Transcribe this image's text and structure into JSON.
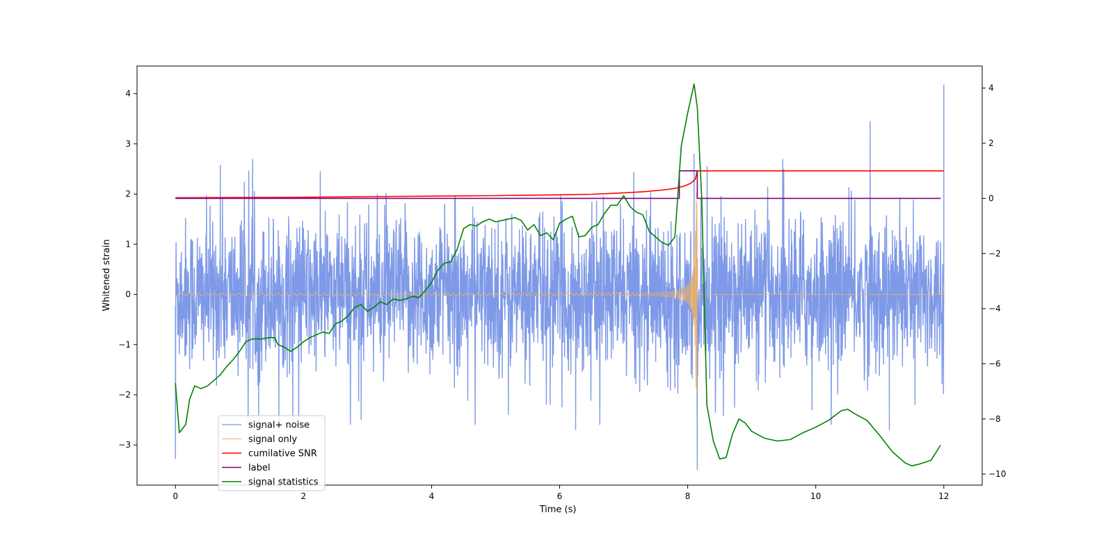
{
  "chart_data": {
    "type": "line",
    "title": "",
    "xlabel": "Time (s)",
    "ylabel": "Whitened strain",
    "xlim": [
      -0.6,
      12.6
    ],
    "ylim_left": [
      -3.8,
      4.55
    ],
    "ylim_right": [
      -10.4,
      4.8
    ],
    "x_ticks": [
      0,
      2,
      4,
      6,
      8,
      10,
      12
    ],
    "y_ticks_left": [
      -3,
      -2,
      -1,
      0,
      1,
      2,
      3,
      4
    ],
    "y_ticks_right": [
      -10,
      -8,
      -6,
      -4,
      -2,
      0,
      2,
      4
    ],
    "x_tick_labels": [
      "0",
      "2",
      "4",
      "6",
      "8",
      "10",
      "12"
    ],
    "y_tick_labels_left": [
      "−3",
      "−2",
      "−1",
      "0",
      "1",
      "2",
      "3",
      "4"
    ],
    "y_tick_labels_right": [
      "−10",
      "−8",
      "−6",
      "−4",
      "−2",
      "0",
      "2",
      "4"
    ],
    "legend_location": "lower-left",
    "series": [
      {
        "name": "signal+ noise",
        "axis": "left",
        "color": "#7794e6",
        "description": "noisy whitened strain, amplitude ~1.8 with spikes up to 4.2 at t=12 and down to -3.5 at t=8.1",
        "spikes": [
          [
            0.0,
            -3.28
          ],
          [
            0.7,
            2.58
          ],
          [
            1.3,
            -2.6
          ],
          [
            2.9,
            -2.5
          ],
          [
            5.2,
            -2.4
          ],
          [
            6.25,
            -2.7
          ],
          [
            8.15,
            -3.5
          ],
          [
            8.1,
            2.8
          ],
          [
            9.5,
            2.5
          ],
          [
            10.85,
            3.45
          ],
          [
            11.15,
            -2.7
          ],
          [
            11.55,
            -2.2
          ],
          [
            12.0,
            4.18
          ]
        ]
      },
      {
        "name": "signal only",
        "axis": "left",
        "color": "#f6b35b",
        "description": "chirp with growing amplitude up to t=8.15 then flat at 0",
        "chirp_end": 8.15,
        "peak_amplitude": 2.2
      },
      {
        "name": "cumilative SNR",
        "axis": "right",
        "x": [
          0,
          1,
          2,
          3,
          4,
          5,
          6,
          6.5,
          7,
          7.3,
          7.6,
          7.8,
          7.95,
          8.05,
          8.12,
          8.15,
          12
        ],
        "values": [
          0.02,
          0.03,
          0.04,
          0.06,
          0.08,
          0.1,
          0.13,
          0.15,
          0.2,
          0.24,
          0.3,
          0.36,
          0.45,
          0.55,
          0.7,
          1.0,
          1.0
        ],
        "color": "#ff0000"
      },
      {
        "name": "label",
        "axis": "right",
        "x": [
          0,
          7.87,
          7.87,
          8.15,
          8.15,
          11.95
        ],
        "values": [
          0,
          0,
          1,
          1,
          0,
          0
        ],
        "color": "#800080"
      },
      {
        "name": "signal statistics",
        "axis": "right",
        "color": "#008000",
        "x": [
          0,
          0.06,
          0.16,
          0.22,
          0.3,
          0.4,
          0.5,
          0.6,
          0.7,
          0.8,
          0.9,
          1.0,
          1.1,
          1.2,
          1.35,
          1.45,
          1.55,
          1.6,
          1.7,
          1.8,
          1.9,
          2.0,
          2.1,
          2.2,
          2.3,
          2.4,
          2.5,
          2.6,
          2.7,
          2.8,
          2.9,
          3.0,
          3.1,
          3.2,
          3.3,
          3.4,
          3.5,
          3.6,
          3.7,
          3.8,
          3.9,
          4.0,
          4.1,
          4.2,
          4.3,
          4.4,
          4.5,
          4.6,
          4.7,
          4.8,
          4.9,
          5.0,
          5.1,
          5.2,
          5.3,
          5.4,
          5.5,
          5.6,
          5.7,
          5.8,
          5.9,
          6.0,
          6.1,
          6.2,
          6.3,
          6.4,
          6.5,
          6.6,
          6.7,
          6.8,
          6.9,
          7.0,
          7.1,
          7.2,
          7.3,
          7.4,
          7.5,
          7.6,
          7.7,
          7.8,
          7.9,
          8.0,
          8.1,
          8.15,
          8.22,
          8.3,
          8.4,
          8.5,
          8.6,
          8.7,
          8.8,
          8.9,
          9.0,
          9.2,
          9.4,
          9.6,
          9.8,
          10.0,
          10.2,
          10.4,
          10.5,
          10.6,
          10.8,
          11.0,
          11.2,
          11.4,
          11.5,
          11.6,
          11.8,
          11.95
        ],
        "values": [
          -6.7,
          -8.5,
          -8.2,
          -7.3,
          -6.8,
          -6.9,
          -6.8,
          -6.6,
          -6.4,
          -6.1,
          -5.85,
          -5.55,
          -5.2,
          -5.1,
          -5.1,
          -5.05,
          -5.05,
          -5.3,
          -5.4,
          -5.55,
          -5.4,
          -5.2,
          -5.05,
          -4.95,
          -4.85,
          -4.9,
          -4.55,
          -4.45,
          -4.25,
          -3.95,
          -3.85,
          -4.1,
          -3.95,
          -3.75,
          -3.85,
          -3.65,
          -3.7,
          -3.65,
          -3.55,
          -3.6,
          -3.35,
          -3.05,
          -2.6,
          -2.35,
          -2.3,
          -1.85,
          -1.1,
          -0.95,
          -1.0,
          -0.85,
          -0.75,
          -0.85,
          -0.8,
          -0.75,
          -0.7,
          -0.8,
          -1.15,
          -0.95,
          -1.35,
          -1.25,
          -1.5,
          -0.9,
          -0.75,
          -0.65,
          -1.4,
          -1.35,
          -1.05,
          -0.95,
          -0.55,
          -0.25,
          -0.25,
          0.1,
          -0.3,
          -0.5,
          -0.6,
          -1.2,
          -1.4,
          -1.6,
          -1.7,
          -1.4,
          1.9,
          3.1,
          4.15,
          3.3,
          0.0,
          -7.5,
          -8.8,
          -9.45,
          -9.4,
          -8.55,
          -8.0,
          -8.15,
          -8.45,
          -8.7,
          -8.8,
          -8.75,
          -8.5,
          -8.3,
          -8.05,
          -7.7,
          -7.65,
          -7.8,
          -8.05,
          -8.6,
          -9.2,
          -9.6,
          -9.7,
          -9.65,
          -9.5,
          -8.95
        ]
      }
    ]
  }
}
